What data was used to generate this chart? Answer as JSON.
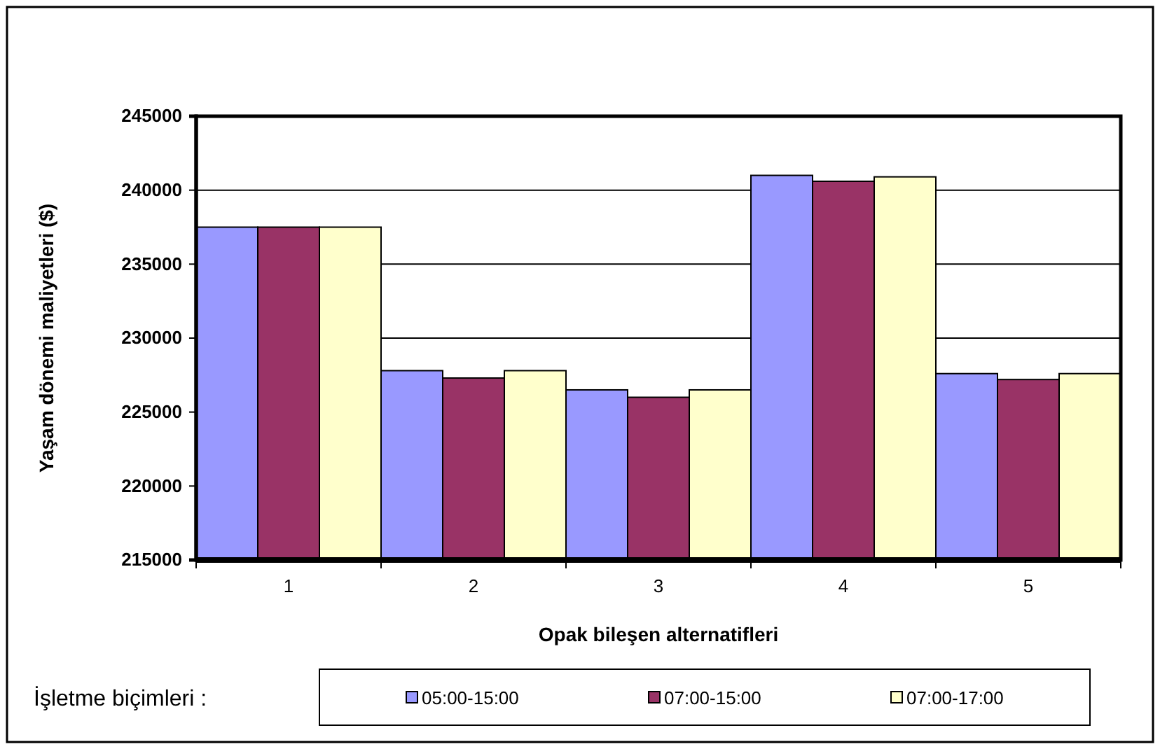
{
  "chart_data": {
    "type": "bar",
    "xlabel": "Opak bileşen alternatifleri",
    "ylabel": "Yaşam dönemi maliyetleri ($)",
    "legend_title": "İşletme biçimleri :",
    "categories": [
      "1",
      "2",
      "3",
      "4",
      "5"
    ],
    "series": [
      {
        "name": "05:00-15:00",
        "color": "#9999ff",
        "values": [
          237500,
          227800,
          226500,
          241000,
          227600
        ]
      },
      {
        "name": "07:00-15:00",
        "color": "#993366",
        "values": [
          237500,
          227300,
          226000,
          240600,
          227200
        ]
      },
      {
        "name": "07:00-17:00",
        "color": "#ffffcc",
        "values": [
          237500,
          227800,
          226500,
          240900,
          227600
        ]
      }
    ],
    "ylim": [
      215000,
      245000
    ],
    "yticks": [
      215000,
      220000,
      225000,
      230000,
      235000,
      240000,
      245000
    ],
    "grid": "y",
    "legend": "bottom"
  }
}
